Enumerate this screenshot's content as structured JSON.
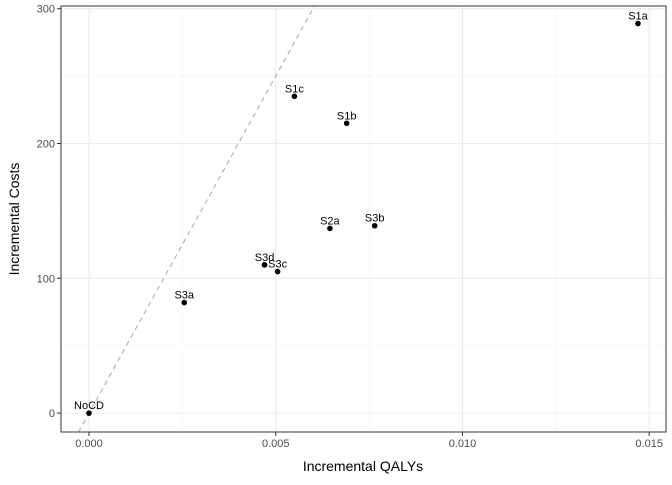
{
  "chart_data": {
    "type": "scatter",
    "title": "",
    "xlabel": "Incremental QALYs",
    "ylabel": "Incremental Costs",
    "xlim": [
      -0.00075,
      0.01545
    ],
    "ylim": [
      -14,
      302
    ],
    "x_ticks": [
      0.0,
      0.005,
      0.01,
      0.015
    ],
    "x_tick_labels": [
      "0.000",
      "0.005",
      "0.010",
      "0.015"
    ],
    "y_ticks": [
      0,
      100,
      200,
      300
    ],
    "y_tick_labels": [
      "0",
      "100",
      "200",
      "300"
    ],
    "grid": true,
    "legend": "none",
    "points": [
      {
        "label": "NoCD",
        "x": 0.0,
        "y": 0
      },
      {
        "label": "S3a",
        "x": 0.00255,
        "y": 82
      },
      {
        "label": "S3d",
        "x": 0.0047,
        "y": 110
      },
      {
        "label": "S3c",
        "x": 0.00505,
        "y": 105
      },
      {
        "label": "S1c",
        "x": 0.0055,
        "y": 235
      },
      {
        "label": "S2a",
        "x": 0.00645,
        "y": 137
      },
      {
        "label": "S1b",
        "x": 0.0069,
        "y": 215
      },
      {
        "label": "S3b",
        "x": 0.00765,
        "y": 139
      },
      {
        "label": "S1a",
        "x": 0.0147,
        "y": 289
      }
    ],
    "reference_line": {
      "style": "dashed",
      "slope": 50000,
      "intercept": 0
    },
    "colors": {
      "point": "#000000",
      "panel_border": "#333333",
      "grid_major": "#ebebeb",
      "grid_minor": "#f5f5f5",
      "reference_line": "#b3b3b3"
    }
  }
}
